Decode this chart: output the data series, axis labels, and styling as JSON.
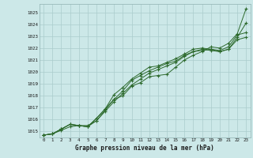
{
  "title": "Graphe pression niveau de la mer (hPa)",
  "bg_color": "#cce8e8",
  "plot_bg_color": "#cce8e8",
  "grid_color": "#aacccc",
  "line_color": "#2d6a2d",
  "marker_color": "#2d6a2d",
  "border_color": "#99bbbb",
  "xlim": [
    -0.5,
    23.5
  ],
  "ylim": [
    1014.5,
    1025.7
  ],
  "yticks": [
    1015,
    1016,
    1017,
    1018,
    1019,
    1020,
    1021,
    1022,
    1023,
    1024,
    1025
  ],
  "xticks": [
    0,
    1,
    2,
    3,
    4,
    5,
    6,
    7,
    8,
    9,
    10,
    11,
    12,
    13,
    14,
    15,
    16,
    17,
    18,
    19,
    20,
    21,
    22,
    23
  ],
  "series": [
    [
      1014.7,
      1014.8,
      1015.1,
      1015.4,
      1015.5,
      1015.5,
      1015.9,
      1016.8,
      1017.7,
      1018.0,
      1018.8,
      1019.1,
      1019.6,
      1019.7,
      1019.8,
      1020.4,
      1021.0,
      1021.4,
      1021.7,
      1022.1,
      1022.0,
      1022.4,
      1023.2,
      1025.3
    ],
    [
      1014.7,
      1014.8,
      1015.2,
      1015.6,
      1015.5,
      1015.4,
      1016.1,
      1016.9,
      1017.7,
      1018.4,
      1019.3,
      1019.7,
      1020.1,
      1020.4,
      1020.7,
      1020.9,
      1021.4,
      1021.7,
      1021.8,
      1021.9,
      1021.7,
      1021.9,
      1022.9,
      1024.1
    ],
    [
      1014.7,
      1014.8,
      1015.2,
      1015.6,
      1015.5,
      1015.4,
      1016.1,
      1016.9,
      1018.1,
      1018.7,
      1019.4,
      1019.9,
      1020.4,
      1020.5,
      1020.8,
      1021.1,
      1021.5,
      1021.9,
      1022.0,
      1021.9,
      1021.8,
      1022.1,
      1023.1,
      1023.3
    ],
    [
      1014.7,
      1014.8,
      1015.2,
      1015.6,
      1015.5,
      1015.4,
      1015.9,
      1016.7,
      1017.5,
      1018.2,
      1018.9,
      1019.4,
      1019.9,
      1020.2,
      1020.5,
      1020.8,
      1021.3,
      1021.7,
      1021.9,
      1021.8,
      1021.7,
      1021.9,
      1022.7,
      1022.9
    ]
  ]
}
